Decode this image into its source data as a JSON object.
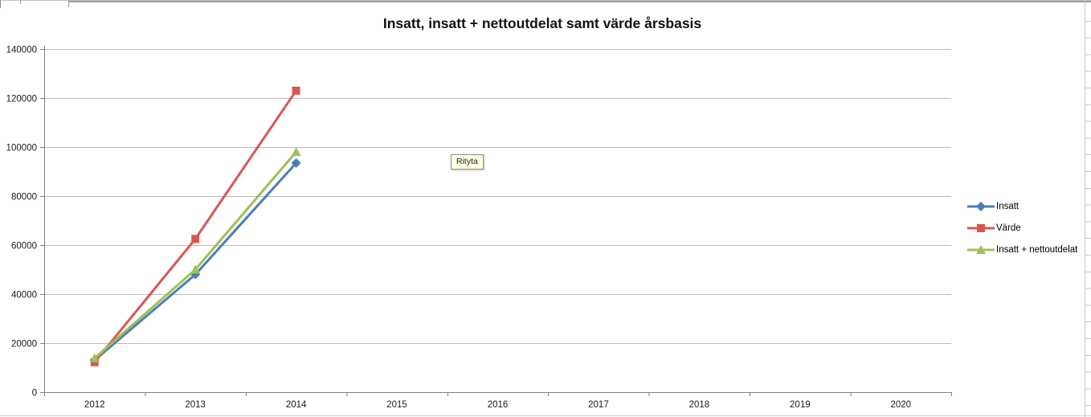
{
  "tooltip": {
    "text": "Rityta"
  },
  "chart_data": {
    "type": "line",
    "title": "Insatt, insatt + nettoutdelat samt värde årsbasis",
    "xlabel": "",
    "ylabel": "",
    "categories": [
      "2012",
      "2013",
      "2014",
      "2015",
      "2016",
      "2017",
      "2018",
      "2019",
      "2020"
    ],
    "series": [
      {
        "name": "Insatt",
        "color": "#4a7ebb",
        "marker": "diamond",
        "values": [
          13000,
          48000,
          93500,
          null,
          null,
          null,
          null,
          null,
          null
        ]
      },
      {
        "name": "Värde",
        "color": "#d95752",
        "marker": "square",
        "values": [
          12200,
          62500,
          123000,
          null,
          null,
          null,
          null,
          null,
          null
        ]
      },
      {
        "name": "Insatt + nettoutdelat",
        "color": "#9dc05a",
        "marker": "triangle",
        "values": [
          13800,
          50000,
          98000,
          null,
          null,
          null,
          null,
          null,
          null
        ]
      }
    ],
    "ylim": [
      0,
      140000
    ],
    "yticks": [
      0,
      20000,
      40000,
      60000,
      80000,
      100000,
      120000,
      140000
    ],
    "grid": true,
    "legend_position": "right",
    "colors": {
      "gridline": "#bdbdbd",
      "axis": "#808080",
      "tick_label": "#1a1a1a",
      "tooltip_bg": "#ffffe1"
    }
  }
}
